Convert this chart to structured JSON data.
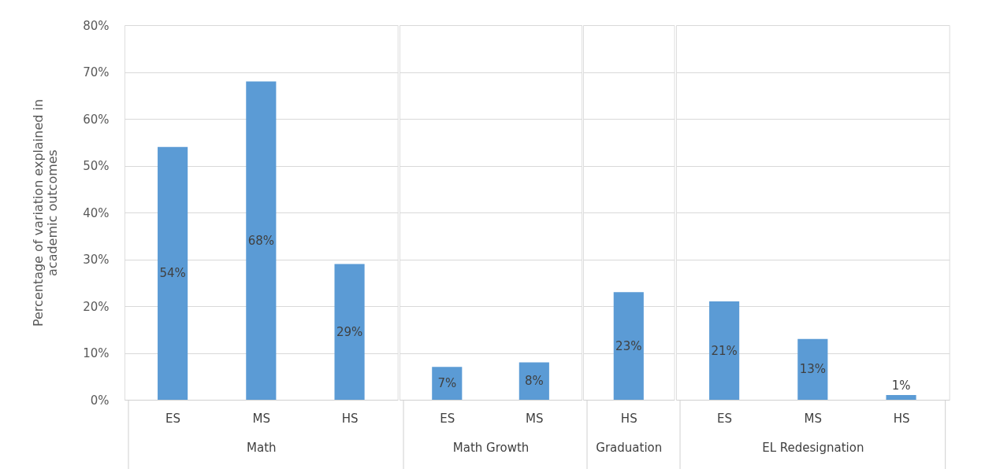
{
  "chart_data": [
    {
      "type": "bar",
      "xlabel": "Math",
      "ylabel": "Percentage of variation explained in\nacademic outcomes",
      "categories": [
        "ES",
        "MS",
        "HS"
      ],
      "values": [
        54,
        68,
        29
      ],
      "value_labels": [
        "54%",
        "68%",
        "29%"
      ],
      "color": "#5b9bd5",
      "ylim": [
        0,
        80
      ],
      "yticks": [
        {
          "value": 0,
          "label": "0%"
        },
        {
          "value": 10,
          "label": "10%"
        },
        {
          "value": 20,
          "label": "20%"
        },
        {
          "value": 30,
          "label": "30%"
        },
        {
          "value": 40,
          "label": "40%"
        },
        {
          "value": 50,
          "label": "50%"
        },
        {
          "value": 60,
          "label": "60%"
        },
        {
          "value": 70,
          "label": "70%"
        },
        {
          "value": 80,
          "label": "80%"
        }
      ],
      "grid": "y"
    },
    {
      "type": "bar",
      "xlabel": "Math Growth",
      "categories": [
        "ES",
        "MS"
      ],
      "values": [
        7,
        8
      ],
      "value_labels": [
        "7%",
        "8%"
      ],
      "color": "#5b9bd5",
      "ylim": [
        0,
        80
      ],
      "yticks": [
        0,
        10,
        20,
        30,
        40,
        50,
        60,
        70,
        80
      ],
      "grid": "y",
      "tick_labels": "x"
    },
    {
      "type": "bar",
      "xlabel": "Graduation",
      "categories": [
        "HS"
      ],
      "values": [
        23
      ],
      "value_labels": [
        "23%"
      ],
      "color": "#5b9bd5",
      "ylim": [
        0,
        80
      ],
      "yticks": [
        0,
        10,
        20,
        30,
        40,
        50,
        60,
        70,
        80
      ],
      "grid": "y",
      "tick_labels": "x"
    },
    {
      "type": "bar",
      "xlabel": "EL Redesignation",
      "categories": [
        "ES",
        "MS",
        "HS"
      ],
      "values": [
        21,
        13,
        1
      ],
      "value_labels": [
        "21%",
        "13%",
        "1%"
      ],
      "color": "#5b9bd5",
      "ylim": [
        0,
        80
      ],
      "yticks": [
        0,
        10,
        20,
        30,
        40,
        50,
        60,
        70,
        80
      ],
      "grid": "y",
      "tick_labels": "x"
    }
  ]
}
